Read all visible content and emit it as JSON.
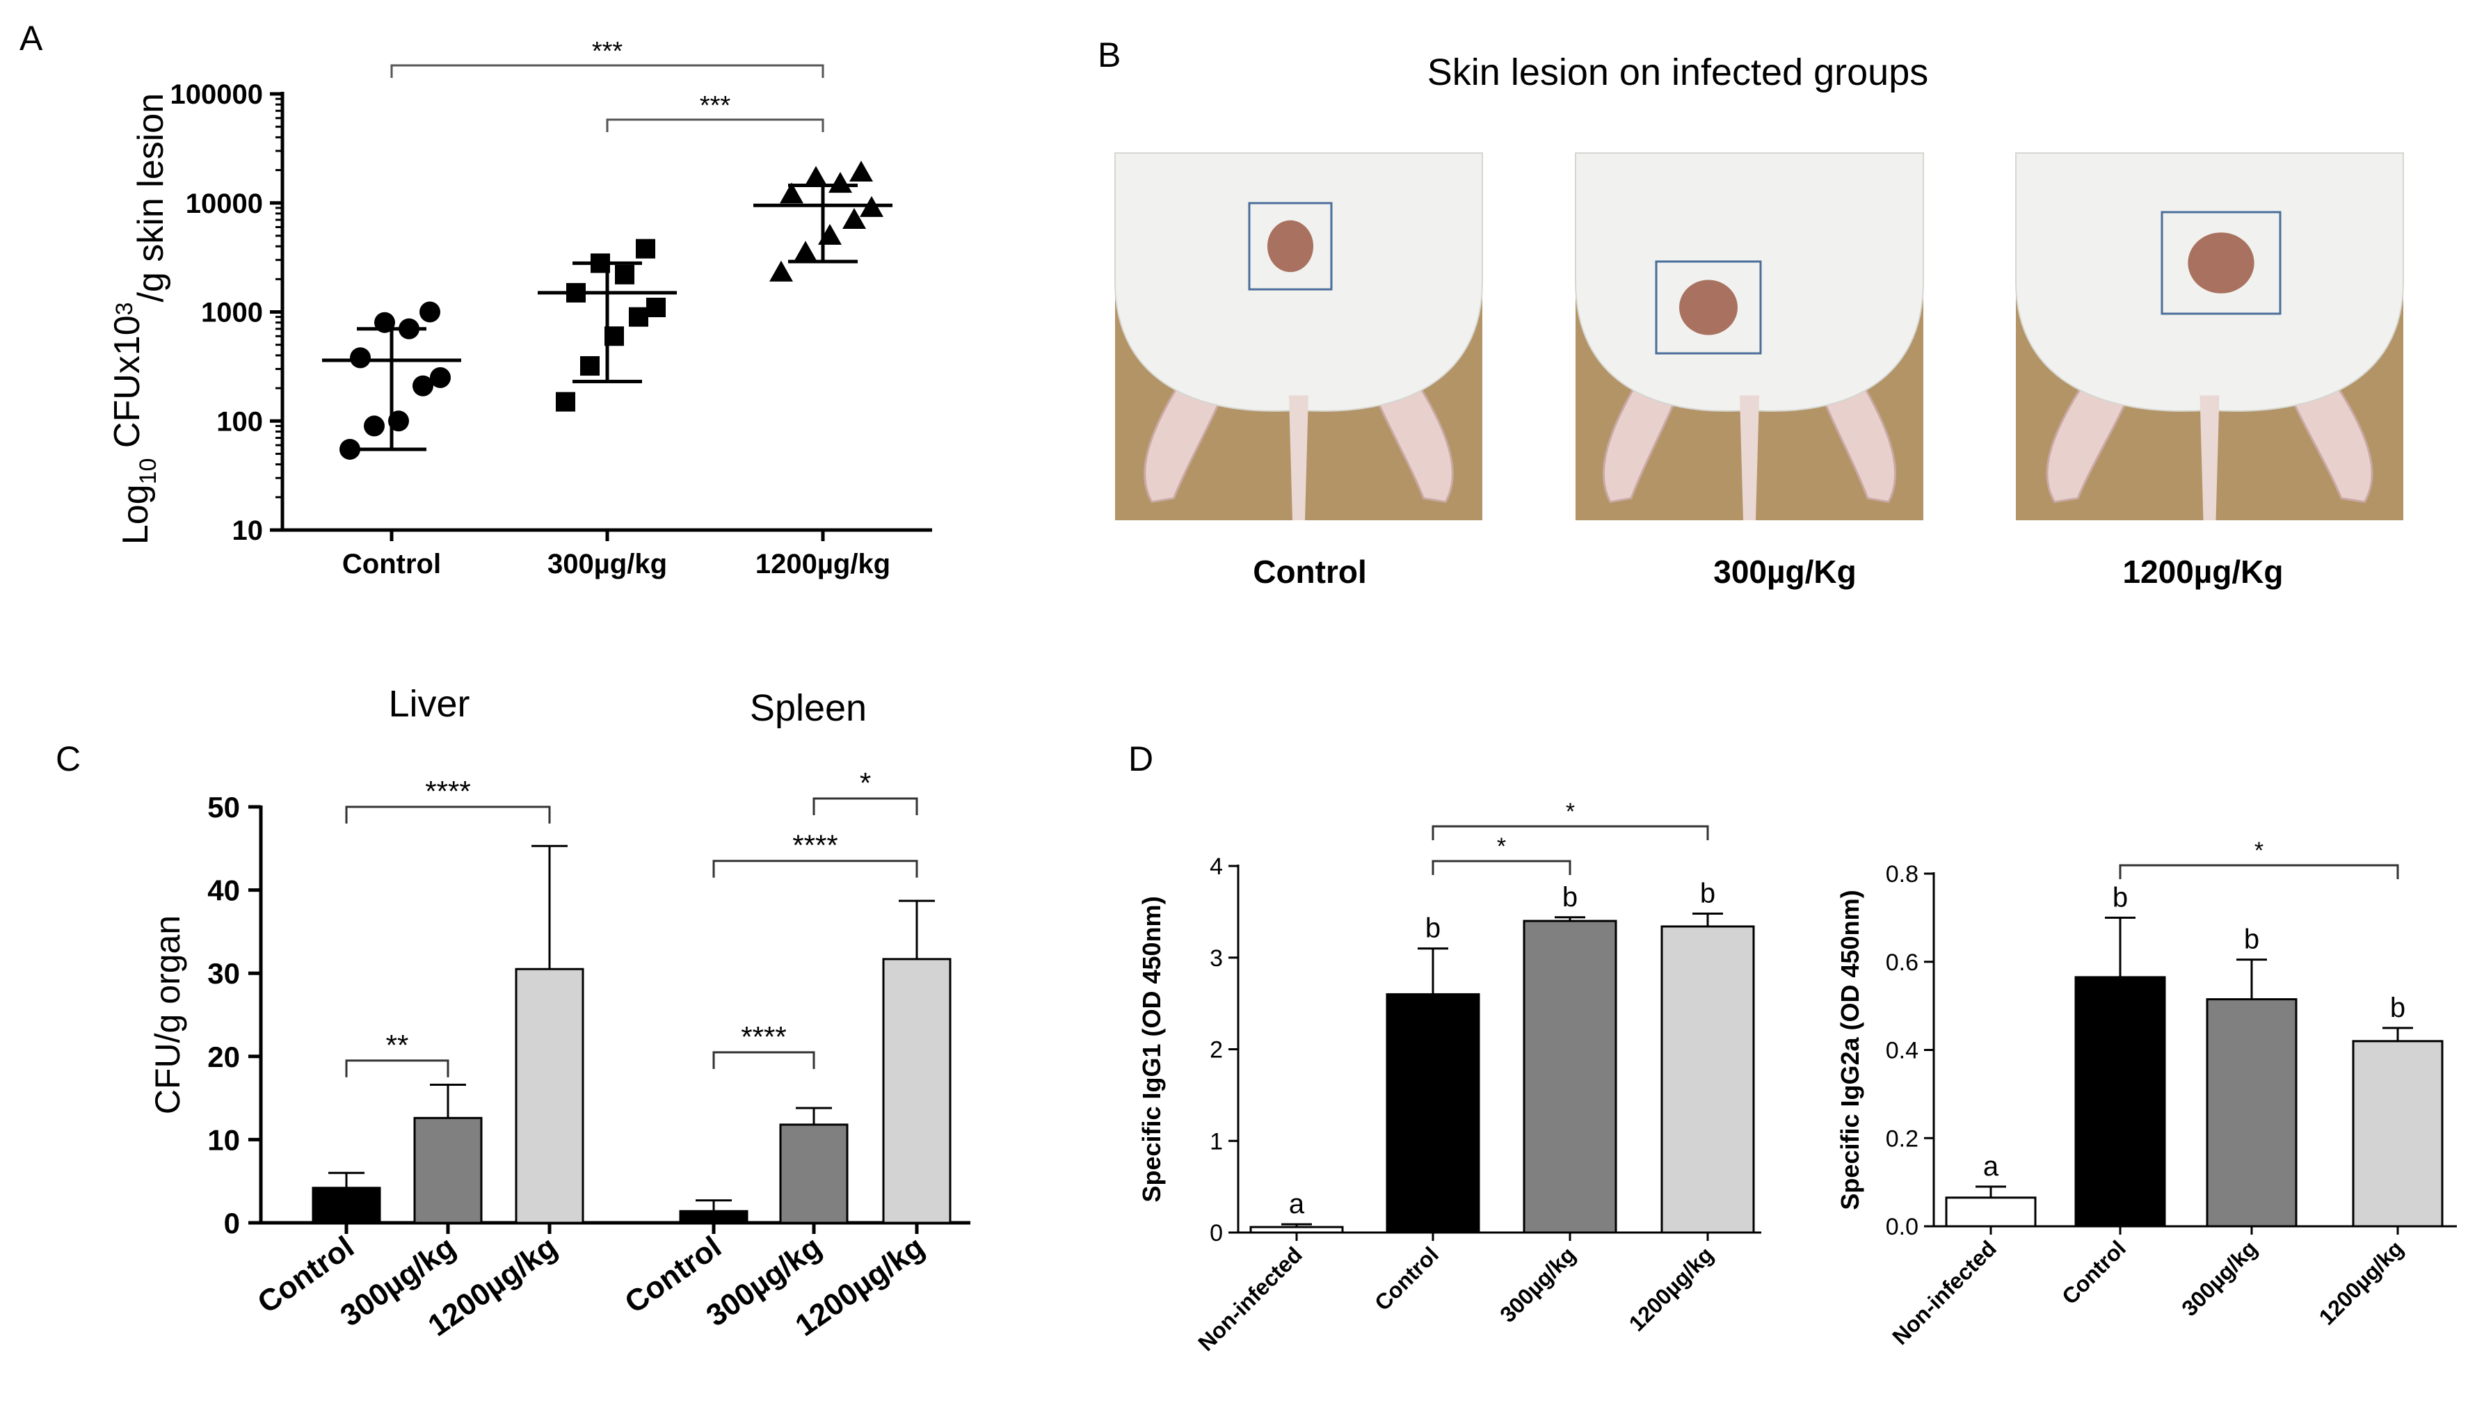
{
  "panels": {
    "a": {
      "letter": "A"
    },
    "b": {
      "letter": "B",
      "title": "Skin lesion on infected groups",
      "photo_labels": [
        "Control",
        "300µg/Kg",
        "1200µg/Kg"
      ]
    },
    "c": {
      "letter": "C",
      "group_titles": [
        "Liver",
        "Spleen"
      ]
    },
    "d": {
      "letter": "D"
    }
  },
  "colors": {
    "black": "#000000",
    "dark_grey": "#808080",
    "light_grey": "#d3d3d3",
    "white": "#ffffff",
    "lesion_box": "#4a6e9a",
    "background_photo": "#b39466"
  },
  "chart_data": [
    {
      "id": "A",
      "type": "scatter",
      "ylabel_parts": [
        "Log",
        "10",
        " CFUx10",
        "3",
        "/g skin lesion"
      ],
      "yscale": "log",
      "ylim": [
        10,
        100000
      ],
      "yticks": [
        "10",
        "100",
        "1000",
        "10000",
        "100000"
      ],
      "categories": [
        "Control",
        "300µg/kg",
        "1200µg/kg"
      ],
      "series": [
        {
          "marker": "circle",
          "values": [
            55,
            90,
            100,
            210,
            250,
            380,
            700,
            800,
            1000
          ],
          "mean": 360,
          "sd_low": 55,
          "sd_high": 700
        },
        {
          "marker": "square",
          "values": [
            150,
            320,
            600,
            900,
            1100,
            1500,
            2200,
            2800,
            3800
          ],
          "mean": 1500,
          "sd_low": 230,
          "sd_high": 2800
        },
        {
          "marker": "triangle",
          "values": [
            2300,
            3500,
            5000,
            7000,
            9000,
            12000,
            15000,
            17000,
            19000
          ],
          "mean": 9500,
          "sd_low": 2900,
          "sd_high": 14500
        }
      ],
      "significance": [
        {
          "from": 0,
          "to": 2,
          "label": "***"
        },
        {
          "from": 1,
          "to": 2,
          "label": "***"
        }
      ]
    },
    {
      "id": "C",
      "type": "bar",
      "ylabel": "CFU/g organ",
      "ylim": [
        0,
        50
      ],
      "yticks": [
        "0",
        "10",
        "20",
        "30",
        "40",
        "50"
      ],
      "groups": [
        {
          "title": "Liver",
          "categories": [
            "Control",
            "300µg/kg",
            "1200µg/kg"
          ],
          "values": [
            4.2,
            12.6,
            30.5
          ],
          "errors": [
            1.8,
            4.0,
            14.8
          ]
        },
        {
          "title": "Spleen",
          "categories": [
            "Control",
            "300µg/kg",
            "1200µg/kg"
          ],
          "values": [
            1.4,
            11.8,
            31.7
          ],
          "errors": [
            1.3,
            2.0,
            7.0
          ]
        }
      ],
      "significance": [
        {
          "group": 0,
          "from": 0,
          "to": 2,
          "label": "****",
          "level": 50
        },
        {
          "group": 0,
          "from": 0,
          "to": 1,
          "label": "**",
          "level": 19.5
        },
        {
          "group": 1,
          "from": 1,
          "to": 2,
          "label": "*",
          "level": 51
        },
        {
          "group": 1,
          "from": 0,
          "to": 2,
          "label": "****",
          "level": 43.5
        },
        {
          "group": 1,
          "from": 0,
          "to": 1,
          "label": "****",
          "level": 20.5
        }
      ]
    },
    {
      "id": "D1",
      "type": "bar",
      "ylabel": "Specific IgG1 (OD 450nm)",
      "ylim": [
        0,
        4
      ],
      "yticks": [
        "0",
        "1",
        "2",
        "3",
        "4"
      ],
      "categories": [
        "Non-infected",
        "Control",
        "300µg/kg",
        "1200µg/kg"
      ],
      "values": [
        0.06,
        2.6,
        3.4,
        3.34
      ],
      "errors": [
        0.03,
        0.5,
        0.04,
        0.14
      ],
      "letters": [
        "a",
        "b",
        "b",
        "b"
      ],
      "significance": [
        {
          "from": 1,
          "to": 3,
          "label": "*",
          "level": 4.48
        },
        {
          "from": 1,
          "to": 2,
          "label": "*",
          "level": 4.2
        }
      ]
    },
    {
      "id": "D2",
      "type": "bar",
      "ylabel": "Specific IgG2a (OD 450nm)",
      "ylim": [
        0,
        0.8
      ],
      "yticks": [
        "0.0",
        "0.2",
        "0.4",
        "0.6",
        "0.8"
      ],
      "categories": [
        "Non-infected",
        "Control",
        "300µg/kg",
        "1200µg/kg"
      ],
      "values": [
        0.065,
        0.565,
        0.515,
        0.42
      ],
      "errors": [
        0.025,
        0.135,
        0.09,
        0.03
      ],
      "letters": [
        "a",
        "b",
        "b",
        "b"
      ],
      "significance": [
        {
          "from": 1,
          "to": 3,
          "label": "*",
          "level": 0.79
        }
      ]
    }
  ]
}
